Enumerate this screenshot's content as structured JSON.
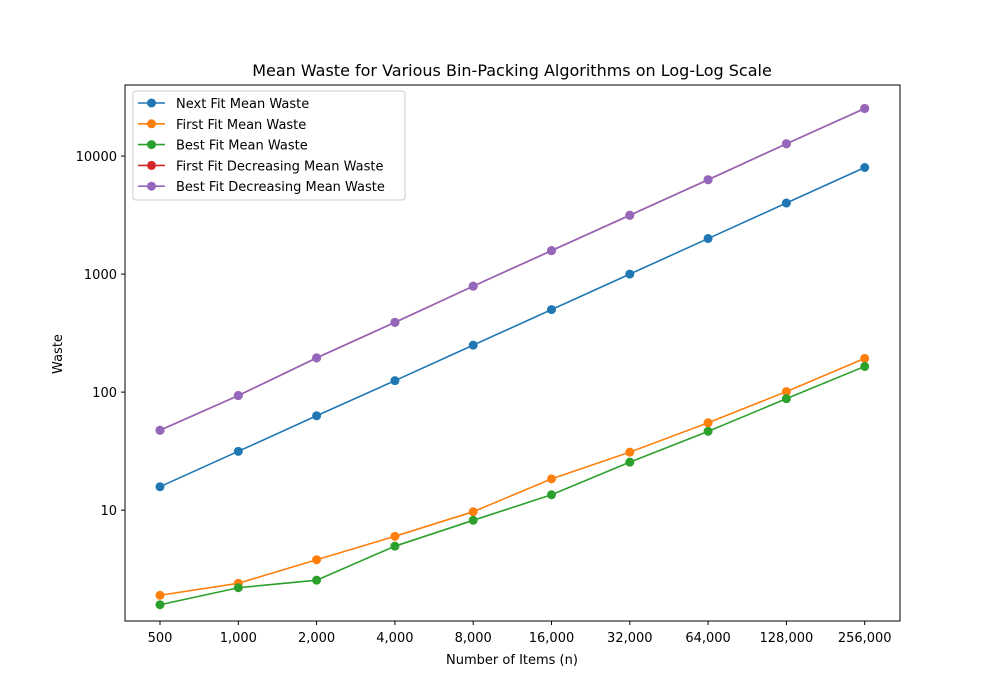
{
  "chart_data": {
    "type": "line",
    "title": "Mean Waste for Various Bin-Packing Algorithms on Log-Log Scale",
    "xlabel": "Number of Items (n)",
    "ylabel": "Waste",
    "x_scale": "log2",
    "y_scale": "log10",
    "grid": false,
    "legend_placement": "top-left",
    "x": [
      500,
      1000,
      2000,
      4000,
      8000,
      16000,
      32000,
      64000,
      128000,
      256000
    ],
    "x_tick_labels": [
      "500",
      "1,000",
      "2,000",
      "4,000",
      "8,000",
      "16,000",
      "32,000",
      "64,000",
      "128,000",
      "256,000"
    ],
    "y_ticks": [
      10,
      100,
      1000,
      10000
    ],
    "y_tick_labels": [
      "10",
      "100",
      "1000",
      "10000"
    ],
    "ylim": [
      1.15,
      40000
    ],
    "series": [
      {
        "name": "Next Fit Mean Waste",
        "color": "#1f77b4",
        "values": [
          15.8,
          31.5,
          63,
          125,
          250,
          500,
          1000,
          2000,
          4000,
          8000
        ]
      },
      {
        "name": "First Fit Mean Waste",
        "color": "#ff7f0e",
        "values": [
          1.9,
          2.4,
          3.8,
          6.0,
          9.7,
          18.4,
          31.0,
          55.0,
          101.0,
          193.0
        ]
      },
      {
        "name": "Best Fit Mean Waste",
        "color": "#2ca02c",
        "values": [
          1.58,
          2.2,
          2.55,
          4.95,
          8.2,
          13.5,
          25.5,
          46.5,
          88.0,
          165.0
        ]
      },
      {
        "name": "First Fit Decreasing Mean Waste",
        "color": "#d62728",
        "values": [
          47.5,
          93.5,
          195,
          390,
          790,
          1580,
          3150,
          6300,
          12700,
          25300
        ]
      },
      {
        "name": "Best Fit Decreasing Mean Waste",
        "color": "#9467bd",
        "values": [
          47.5,
          93.5,
          195,
          390,
          790,
          1580,
          3150,
          6300,
          12700,
          25300
        ]
      }
    ]
  }
}
